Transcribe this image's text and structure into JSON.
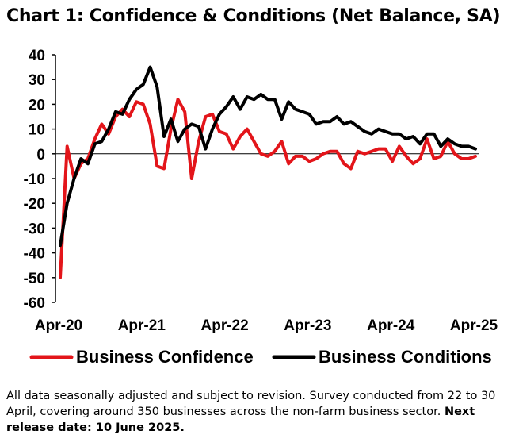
{
  "chart_data": {
    "type": "line",
    "title": "Chart 1: Confidence & Conditions (Net Balance, SA)",
    "xlabel": "",
    "ylabel": "",
    "ylim": [
      -60,
      40
    ],
    "yticks": [
      40,
      30,
      20,
      10,
      0,
      -10,
      -20,
      -30,
      -40,
      -50,
      -60
    ],
    "xticks": [
      {
        "label": "Apr-20",
        "index": 0
      },
      {
        "label": "Apr-21",
        "index": 12
      },
      {
        "label": "Apr-22",
        "index": 24
      },
      {
        "label": "Apr-23",
        "index": 36
      },
      {
        "label": "Apr-24",
        "index": 48
      },
      {
        "label": "Apr-25",
        "index": 60
      }
    ],
    "x_period": "monthly, Apr-20 to Apr-25",
    "legend_position": "bottom",
    "series": [
      {
        "name": "Business Confidence",
        "color": "#e3151a",
        "values": [
          -50,
          3,
          -10,
          -4,
          -2,
          6,
          12,
          8,
          15,
          18,
          15,
          21,
          20,
          12,
          -5,
          -6,
          10,
          22,
          17,
          -10,
          5,
          15,
          16,
          9,
          8,
          2,
          7,
          10,
          5,
          0,
          -1,
          1,
          5,
          -4,
          -1,
          -1,
          -3,
          -2,
          0,
          1,
          1,
          -4,
          -6,
          1,
          0,
          1,
          2,
          2,
          -3,
          3,
          -1,
          -4,
          -2,
          6,
          -2,
          -1,
          5,
          0,
          -2,
          -2,
          -1
        ]
      },
      {
        "name": "Business Conditions",
        "color": "#000000",
        "values": [
          -37,
          -20,
          -10,
          -2,
          -4,
          4,
          5,
          10,
          17,
          16,
          22,
          26,
          28,
          35,
          27,
          7,
          14,
          5,
          10,
          12,
          11,
          2,
          10,
          16,
          19,
          23,
          18,
          23,
          22,
          24,
          22,
          22,
          14,
          21,
          18,
          17,
          16,
          12,
          13,
          13,
          15,
          12,
          13,
          11,
          9,
          8,
          10,
          9,
          8,
          8,
          6,
          7,
          4,
          8,
          8,
          3,
          6,
          4,
          3,
          3,
          2
        ]
      }
    ]
  },
  "footnote": {
    "text": "All data seasonally adjusted and subject to revision. Survey conducted from 22 to 30 April, covering around 350 businesses across the non-farm business sector.",
    "bold": "Next release date: 10 June 2025."
  }
}
